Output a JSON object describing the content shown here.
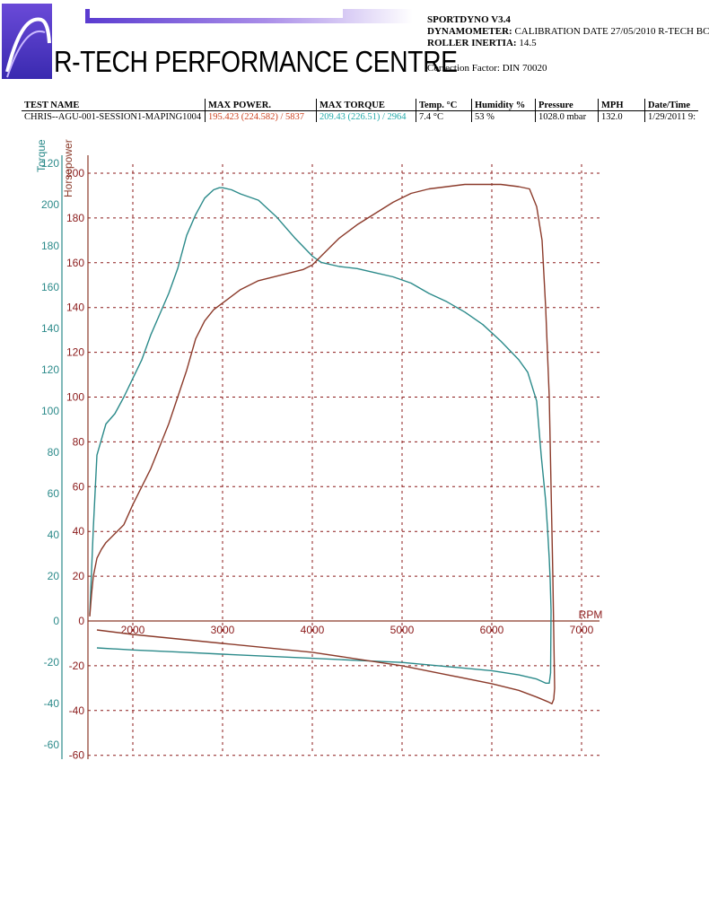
{
  "header": {
    "company": "R-TECH PERFORMANCE CENTRE",
    "software": "SPORTDYNO V3.4",
    "dyno_label": "DYNAMOMETER:",
    "dyno_value": " CALIBRATION DATE 27/05/2010 R-TECH BC",
    "inertia_label": "ROLLER INERTIA:",
    "inertia_value": "  14.5",
    "correction": "Correction Factor: DIN 70020"
  },
  "table": {
    "headers": [
      "TEST NAME",
      "MAX POWER.",
      "MAX TORQUE",
      "Temp. °C",
      "Humidity %",
      "Pressure",
      "MPH",
      "Date/Time"
    ],
    "row": [
      "CHRIS--AGU-001-SESSION1-MAPING1004",
      "195.423 (224.582) / 5837",
      "209.43 (226.51) / 2964",
      "7.4 °C",
      " 53 %",
      "1028.0 mbar",
      "132.0",
      "1/29/2011 9:"
    ]
  },
  "colors": {
    "torque": "#2b8a8a",
    "power": "#8b3a2a",
    "grid": "#8b1a1a",
    "power_value": "#cc4422",
    "torque_value": "#22aaaa",
    "banner": "#7a4fd0"
  },
  "chart_data": {
    "type": "line",
    "xlabel": "RPM",
    "y_left_label": "Torque",
    "y_right_label": "Horsepower",
    "x_ticks": [
      "2000",
      "3000",
      "4000",
      "5000",
      "6000",
      "7000"
    ],
    "torque_ticks": [
      "120",
      "200",
      "180",
      "160",
      "140",
      "120",
      "100",
      "80",
      "60",
      "40",
      "20",
      "0",
      "-20",
      "-40",
      "-60"
    ],
    "hp_ticks": [
      "200",
      "180",
      "160",
      "140",
      "120",
      "100",
      "80",
      "60",
      "40",
      "20",
      "0",
      "-20",
      "-40",
      "-60"
    ],
    "xlim": [
      1500,
      7200
    ],
    "hp_ylim": [
      -60,
      200
    ],
    "grid": true,
    "series": [
      {
        "name": "Torque",
        "axis": "torque",
        "x": [
          1520,
          1560,
          1600,
          1700,
          1800,
          1900,
          2000,
          2100,
          2200,
          2300,
          2400,
          2500,
          2600,
          2700,
          2800,
          2900,
          2964,
          3000,
          3100,
          3200,
          3400,
          3600,
          3800,
          4000,
          4100,
          4300,
          4500,
          4700,
          4900,
          5100,
          5300,
          5500,
          5700,
          5900,
          6100,
          6300,
          6400,
          6500,
          6550,
          6600,
          6620,
          6640,
          6650,
          6660,
          6655,
          6640,
          6600,
          6500,
          6300,
          6000,
          5500,
          5000,
          4500,
          4000,
          3500,
          3000,
          2500,
          2000,
          1600
        ],
        "y": [
          3,
          45,
          80,
          95,
          100,
          108,
          117,
          126,
          138,
          148,
          158,
          170,
          186,
          196,
          204,
          208,
          209,
          209,
          208,
          206,
          203,
          195,
          185,
          176,
          173,
          171,
          170,
          168,
          166,
          163,
          158,
          154,
          149,
          143,
          135,
          126,
          120,
          106,
          80,
          58,
          45,
          30,
          20,
          5,
          -25,
          -30,
          -30,
          -28,
          -26,
          -24,
          -22,
          -20,
          -19,
          -18,
          -17,
          -16,
          -15,
          -14,
          -13
        ]
      },
      {
        "name": "Horsepower",
        "axis": "hp",
        "x": [
          1520,
          1540,
          1560,
          1600,
          1650,
          1700,
          1800,
          1900,
          2000,
          2100,
          2200,
          2300,
          2400,
          2500,
          2600,
          2700,
          2800,
          2900,
          3000,
          3100,
          3200,
          3300,
          3400,
          3500,
          3700,
          3900,
          4000,
          4100,
          4200,
          4300,
          4400,
          4500,
          4700,
          4900,
          5100,
          5300,
          5500,
          5700,
          5837,
          5900,
          6100,
          6300,
          6420,
          6500,
          6560,
          6600,
          6640,
          6660,
          6680,
          6690,
          6700,
          6690,
          6670,
          6620,
          6500,
          6300,
          6000,
          5500,
          5000,
          4500,
          4000,
          3500,
          3000,
          2500,
          2000,
          1600
        ],
        "y": [
          2,
          12,
          20,
          28,
          32,
          35,
          39,
          43,
          52,
          60,
          68,
          78,
          88,
          100,
          112,
          126,
          134,
          139,
          142,
          145,
          148,
          150,
          152,
          153,
          155,
          157,
          159,
          163,
          167,
          171,
          174,
          177,
          182,
          187,
          191,
          193,
          194,
          195,
          195,
          195,
          195,
          194,
          193,
          185,
          170,
          140,
          100,
          60,
          20,
          -5,
          -30,
          -35,
          -37,
          -36,
          -34,
          -31,
          -28,
          -24,
          -20,
          -17,
          -14,
          -12,
          -10,
          -8,
          -6,
          -4
        ]
      }
    ]
  }
}
